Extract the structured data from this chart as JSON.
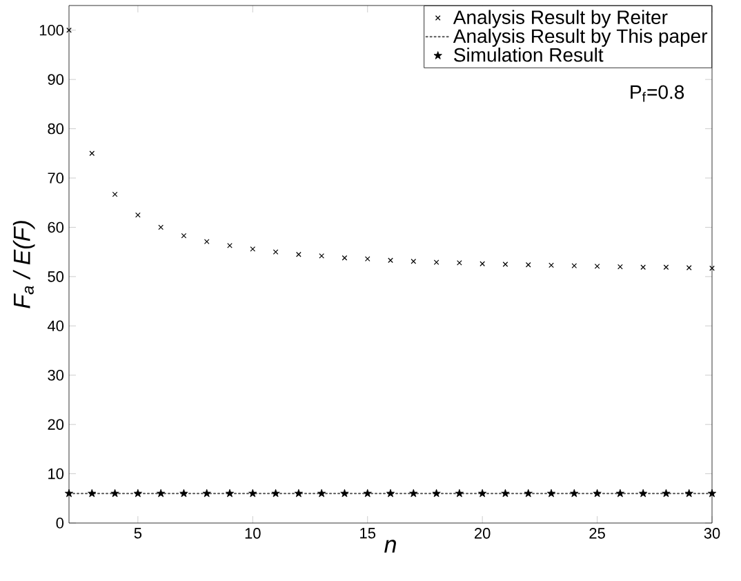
{
  "chart_data": {
    "type": "scatter",
    "x": [
      2,
      3,
      4,
      5,
      6,
      7,
      8,
      9,
      10,
      11,
      12,
      13,
      14,
      15,
      16,
      17,
      18,
      19,
      20,
      21,
      22,
      23,
      24,
      25,
      26,
      27,
      28,
      29,
      30
    ],
    "series": [
      {
        "name": "Analysis Result by Reiter",
        "marker": "cross",
        "color": "#000000",
        "values": [
          100,
          75,
          66.7,
          62.5,
          60,
          58.3,
          57.1,
          56.3,
          55.6,
          55,
          54.5,
          54.2,
          53.8,
          53.6,
          53.3,
          53.1,
          52.9,
          52.8,
          52.6,
          52.5,
          52.4,
          52.3,
          52.2,
          52.1,
          52,
          51.9,
          51.9,
          51.8,
          51.7
        ]
      },
      {
        "name": "Analysis Result by This paper",
        "type": "line",
        "marker": "none",
        "line_style": "dotted",
        "color": "#555555",
        "values": [
          6,
          6,
          6,
          6,
          6,
          6,
          6,
          6,
          6,
          6,
          6,
          6,
          6,
          6,
          6,
          6,
          6,
          6,
          6,
          6,
          6,
          6,
          6,
          6,
          6,
          6,
          6,
          6,
          6
        ]
      },
      {
        "name": "Simulation Result",
        "marker": "star",
        "color": "#000000",
        "values": [
          6,
          6,
          6,
          6,
          6,
          6,
          6,
          6,
          6,
          6,
          6,
          6,
          6,
          6,
          6,
          6,
          6,
          6,
          6,
          6,
          6,
          6,
          6,
          6,
          6,
          6,
          6,
          6,
          6
        ]
      }
    ],
    "xlabel": "n",
    "ylabel": "F$_{a}$ / E(F)",
    "xlim": [
      2,
      30
    ],
    "ylim": [
      0,
      105
    ],
    "xticks": [
      5,
      10,
      15,
      20,
      25,
      30
    ],
    "yticks": [
      0,
      10,
      20,
      30,
      40,
      50,
      60,
      70,
      80,
      90,
      100
    ],
    "legend": "top right",
    "annotations": [
      "P$_{f}$=0.8"
    ]
  }
}
